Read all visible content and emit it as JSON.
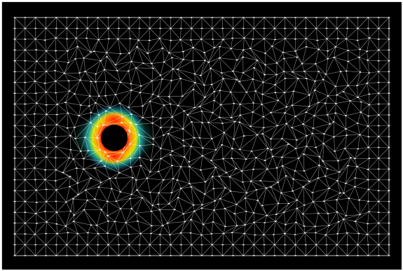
{
  "scene": {
    "background_color": "#000000",
    "mesh_line_color": "#ffffff",
    "hole_color": "#000000",
    "field_colors": [
      "#ff2a00",
      "#ff9a00",
      "#e8e800",
      "#20d8c8",
      "#30a0ff"
    ]
  }
}
